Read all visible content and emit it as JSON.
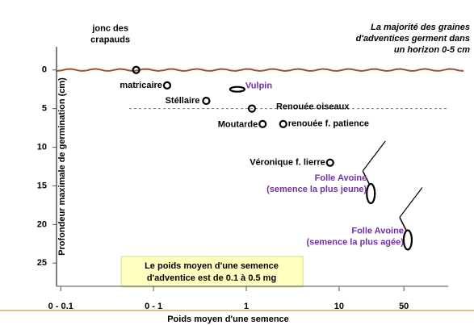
{
  "chart_data": {
    "type": "scatter",
    "annotation": [
      "La majorité des graines",
      "d'adventices germent dans",
      "un horizon 0-5 cm"
    ],
    "note": [
      "Le poids moyen d'une semence",
      "d'adventice est de 0.1 à 0.5 mg"
    ],
    "x_label": "Poids moyen d'une semence",
    "y_label": "Profondeur maximale de germination (cm)",
    "xscale": "log",
    "xlim": [
      0.009,
      150
    ],
    "xticks": [
      {
        "value": 0.01,
        "label": "0 - 0.1"
      },
      {
        "value": 0.1,
        "label": "0 - 1"
      },
      1,
      10,
      50
    ],
    "ylim": [
      -3,
      28
    ],
    "yticks": [
      0,
      5,
      10,
      15,
      20,
      25
    ],
    "y_inverted": true,
    "reference_line": 5,
    "points": [
      {
        "label": [
          "jonc des",
          "crapauds"
        ],
        "x": 0.065,
        "y": 0,
        "color": "#000000"
      },
      {
        "label": [
          "matricaire"
        ],
        "x": 0.14,
        "y": 2,
        "color": "#000000"
      },
      {
        "label": [
          "Vulpin"
        ],
        "x": 0.8,
        "y": 2.5,
        "color": "#7030a0"
      },
      {
        "label": [
          "Stéllaire"
        ],
        "x": 0.37,
        "y": 4,
        "color": "#000000"
      },
      {
        "label": [
          "Renouée oiseaux"
        ],
        "x": 1.15,
        "y": 5,
        "color": "#000000"
      },
      {
        "label": [
          "Moutarde"
        ],
        "x": 1.5,
        "y": 7,
        "color": "#000000"
      },
      {
        "label": [
          "renouée f. patience"
        ],
        "x": 2.5,
        "y": 7,
        "color": "#000000"
      },
      {
        "label": [
          "Véronique f. lierre"
        ],
        "x": 8,
        "y": 12,
        "color": "#000000"
      },
      {
        "label": [
          "Folle Avoine",
          "(semence la plus jeune)"
        ],
        "x": 22,
        "y": 16,
        "color": "#7030a0"
      },
      {
        "label": [
          "Folle Avoine",
          "(semence la plus agée)"
        ],
        "x": 55,
        "y": 22,
        "color": "#7030a0"
      }
    ]
  }
}
